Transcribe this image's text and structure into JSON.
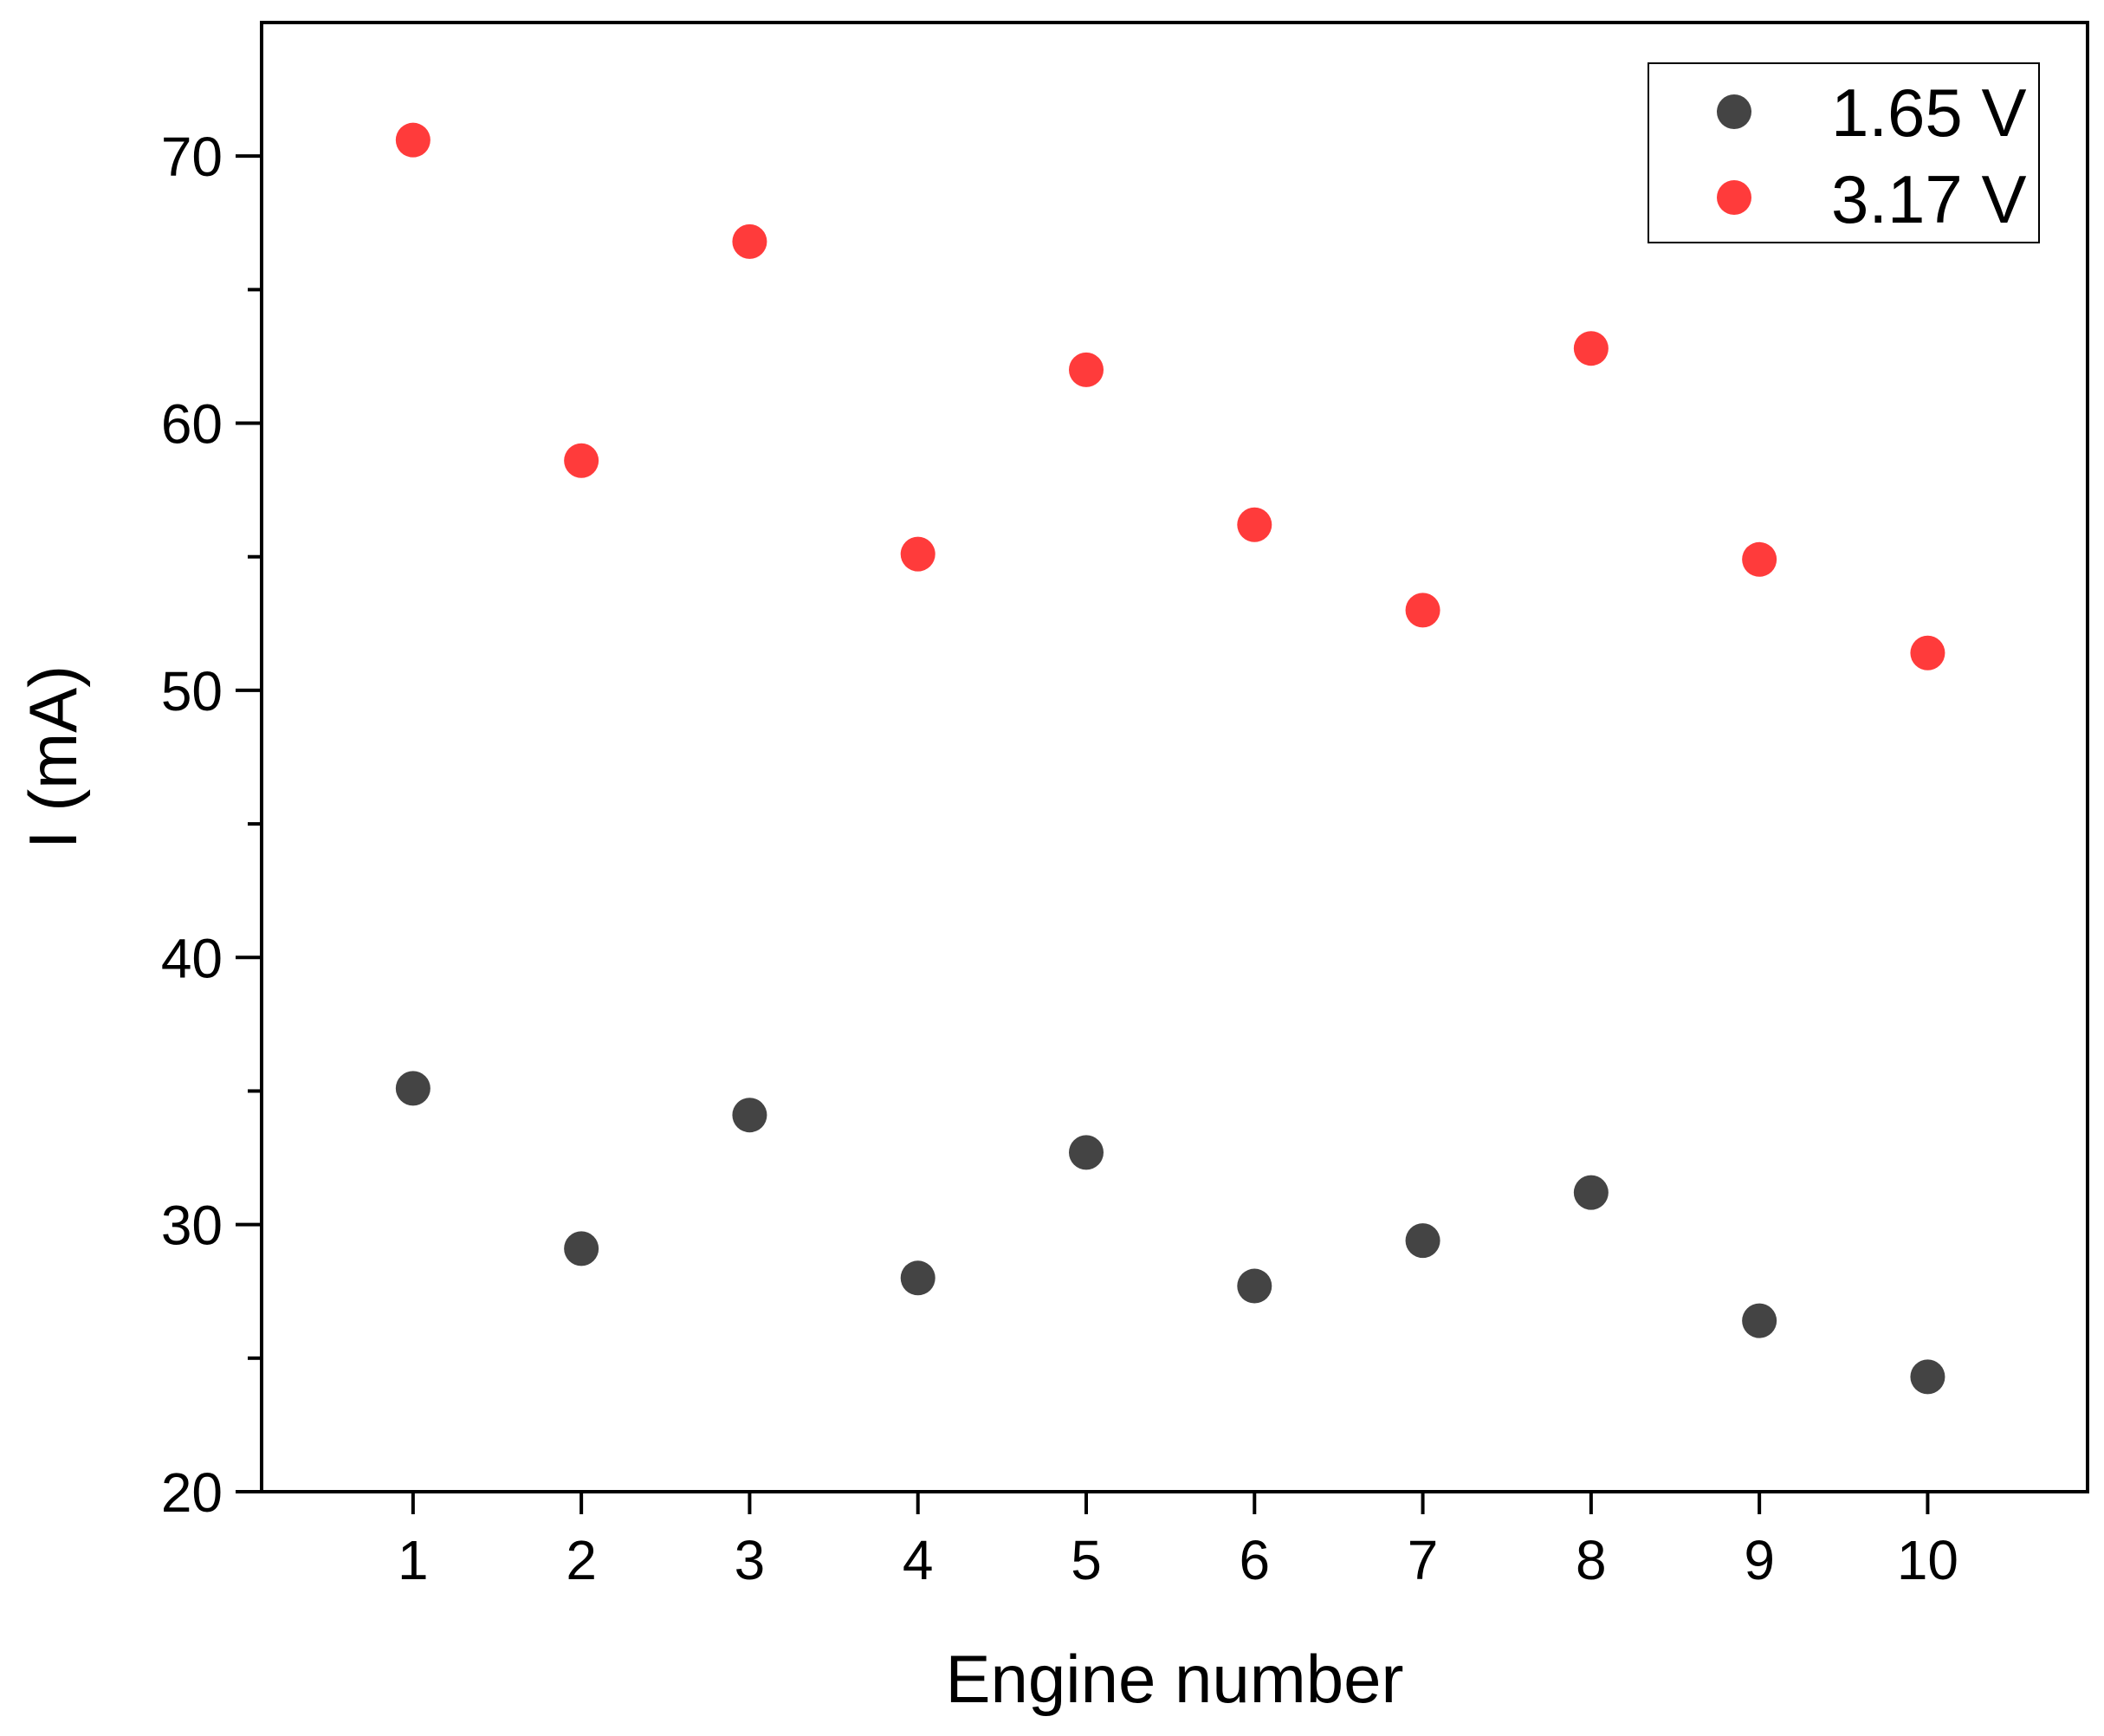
{
  "chart_data": {
    "type": "scatter",
    "title": "",
    "xlabel": "Engine number",
    "ylabel": "I (mA)",
    "xlim": [
      0.1,
      10.95
    ],
    "ylim": [
      20,
      75
    ],
    "x": [
      1,
      2,
      3,
      4,
      5,
      6,
      7,
      8,
      9,
      10
    ],
    "x_ticks": [
      "1",
      "2",
      "3",
      "4",
      "5",
      "6",
      "7",
      "8",
      "9",
      "10"
    ],
    "y_ticks": [
      "20",
      "30",
      "40",
      "50",
      "60",
      "70"
    ],
    "y_tick_values": [
      20,
      30,
      40,
      50,
      60,
      70
    ],
    "y_minor_tick_values": [
      25,
      35,
      45,
      55,
      65
    ],
    "grid": false,
    "legend_position": "top-right",
    "series": [
      {
        "name": "1.65 V",
        "color": "#444444",
        "values": [
          35.1,
          29.1,
          34.1,
          28.0,
          32.7,
          27.7,
          29.4,
          31.2,
          26.4,
          24.3
        ]
      },
      {
        "name": "3.17 V",
        "color": "#ff3b3b",
        "values": [
          70.6,
          58.6,
          66.8,
          55.1,
          62.0,
          56.2,
          53.0,
          62.8,
          54.9,
          51.4
        ]
      }
    ]
  }
}
